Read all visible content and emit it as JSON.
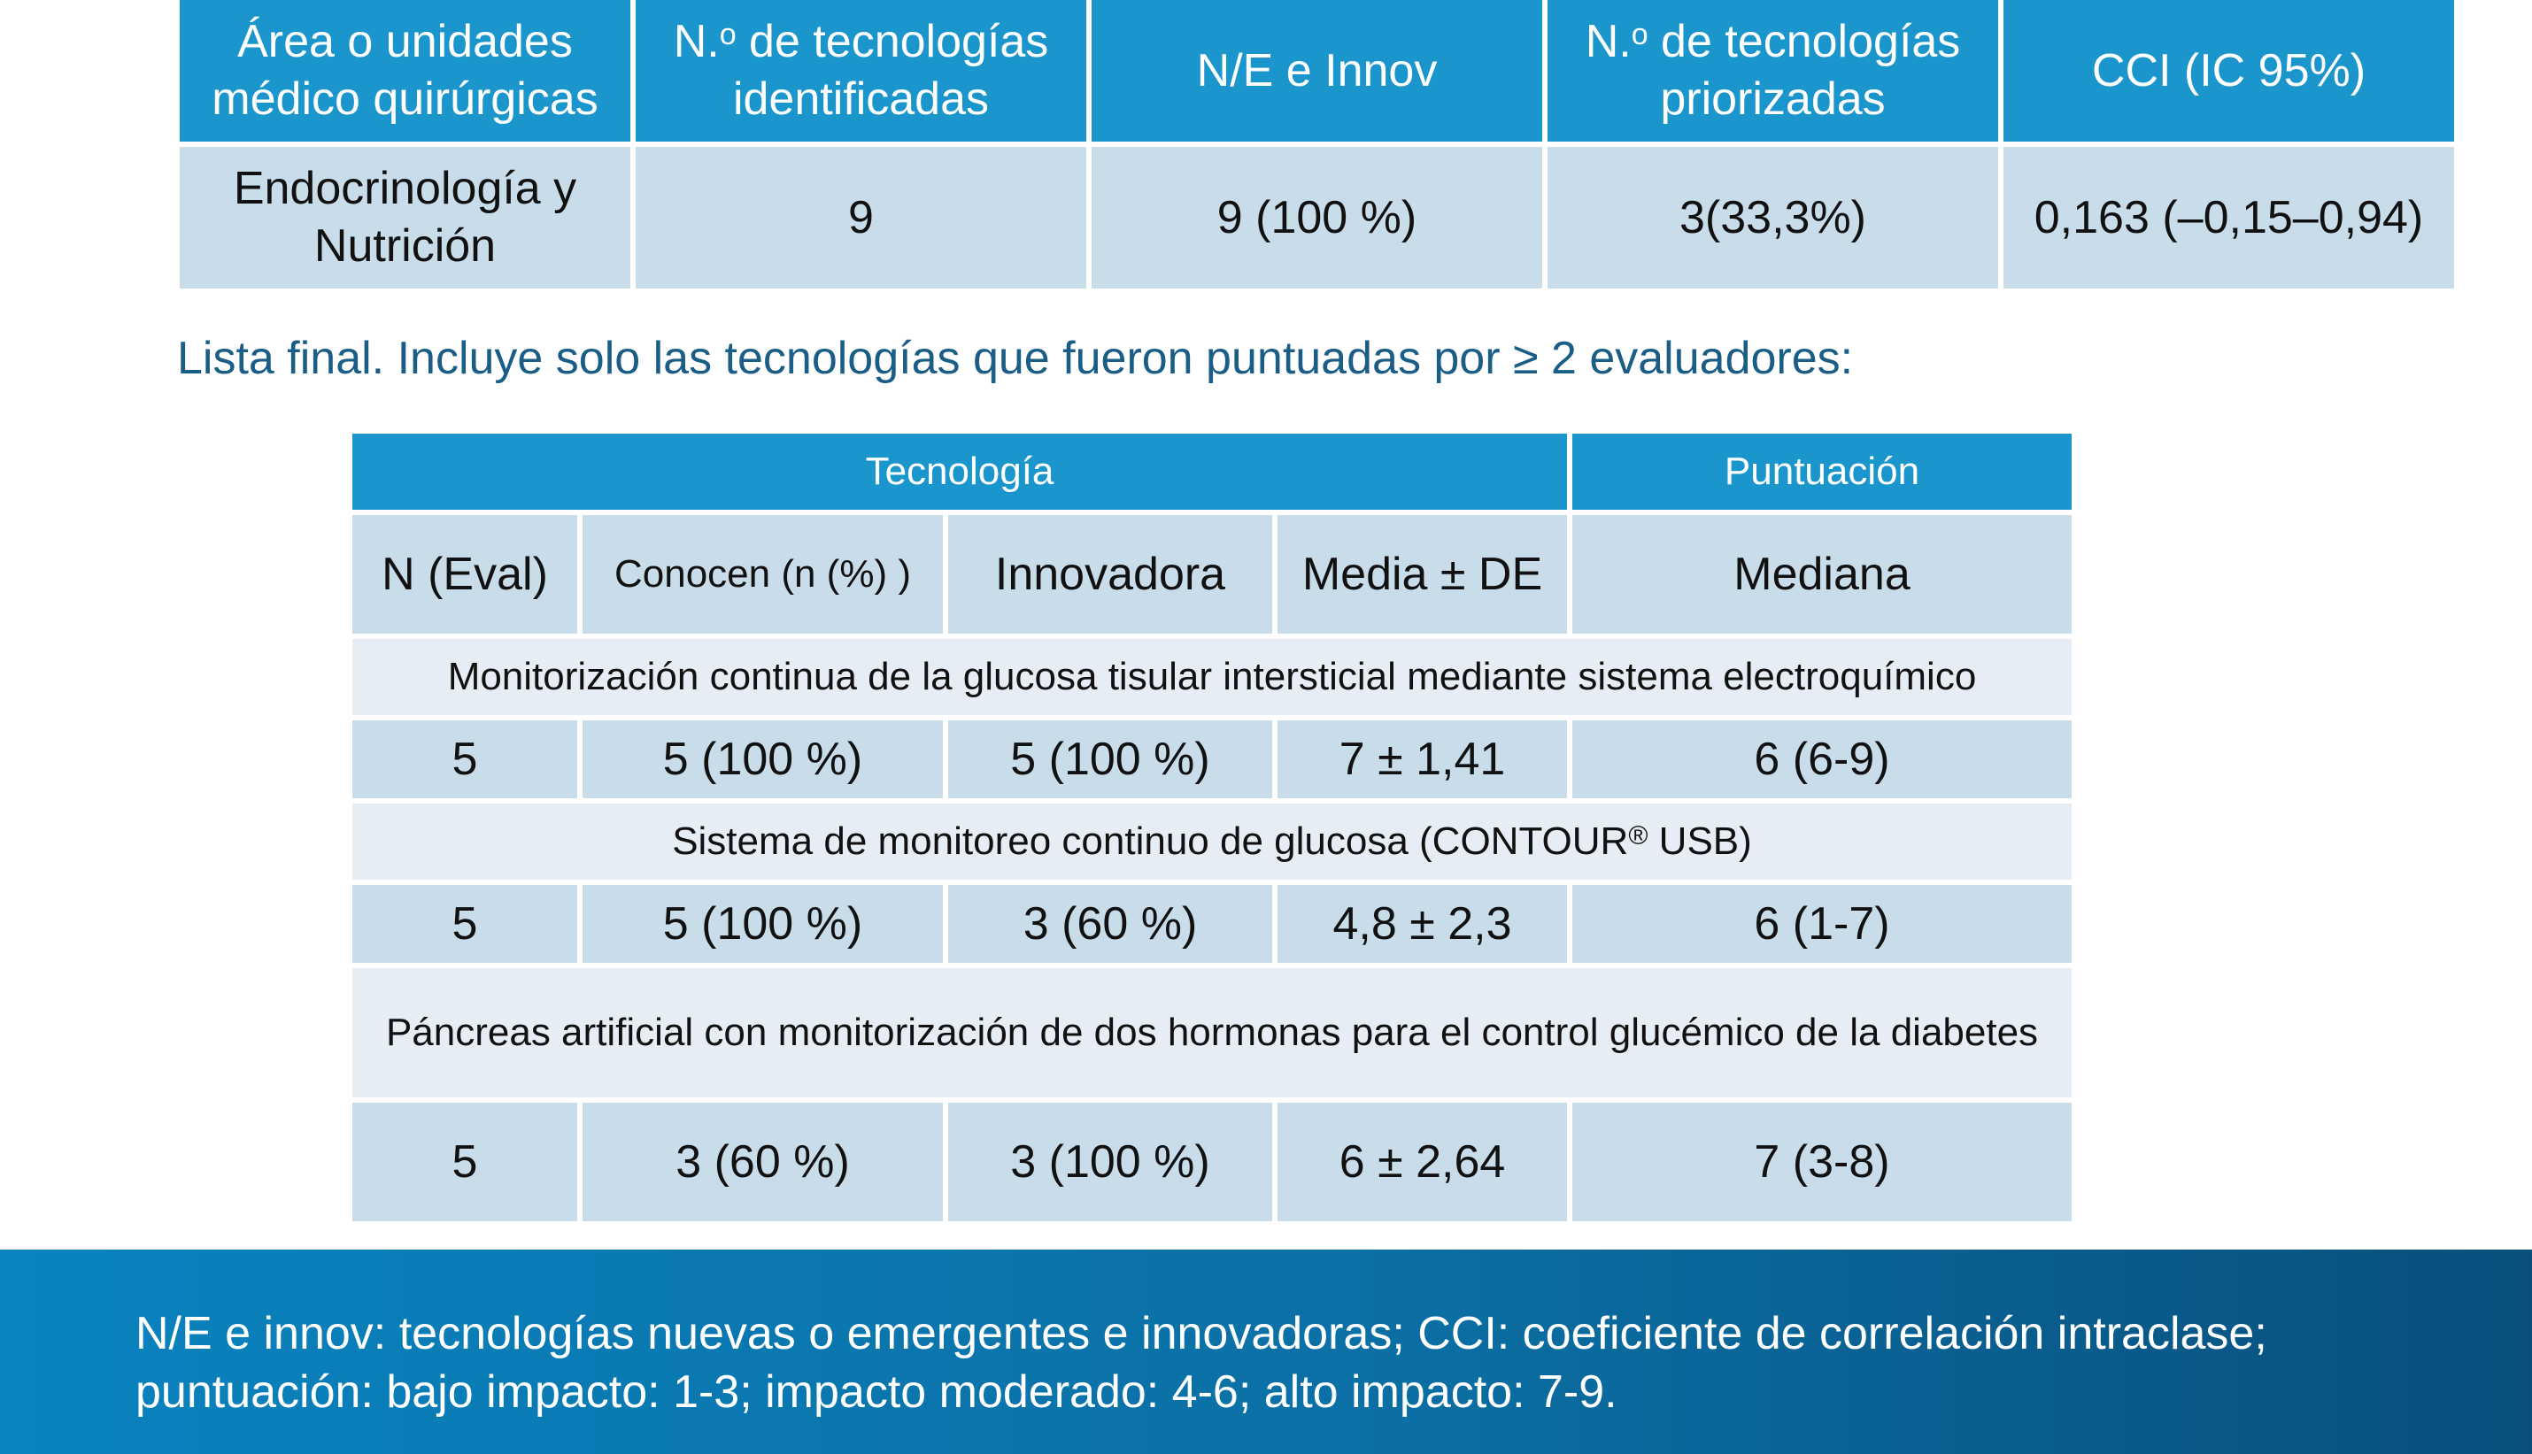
{
  "table1": {
    "headers": {
      "area": [
        "Área o unidades",
        "médico quirúrgicas"
      ],
      "identified": {
        "prefix": "N.",
        "sup": "o",
        "line1_rest": " de tecnologías",
        "line2": "identificadas"
      },
      "ne_innov": "N/E e Innov",
      "prioritized": {
        "prefix": "N.",
        "sup": "o",
        "line1_rest": " de tecnologías",
        "line2": "priorizadas"
      },
      "cci": "CCI (IC 95%)"
    },
    "row": {
      "area": [
        "Endocrinología y",
        "Nutrición"
      ],
      "identified": "9",
      "ne_innov": "9 (100 %)",
      "prioritized": "3(33,3%)",
      "cci": "0,163 (–0,15–0,94)"
    }
  },
  "caption": "Lista final. Incluye solo las tecnologías que fueron puntuadas por ≥ 2 evaluadores:",
  "table2": {
    "group_headers": {
      "tech": "Tecnología",
      "score": "Puntuación"
    },
    "sub_headers": {
      "n_eval": "N (Eval)",
      "know": "Conocen (n (%) )",
      "innovative": "Innovadora",
      "mean": "Media ± DE",
      "median": "Mediana"
    },
    "technologies": [
      {
        "name": "Monitorización continua de la glucosa tisular intersticial mediante sistema electroquímico",
        "n_eval": "5",
        "know": "5 (100 %)",
        "innovative": "5 (100 %)",
        "mean": "7 ± 1,41",
        "median": "6 (6-9)"
      },
      {
        "name_before": "Sistema de monitoreo continuo de glucosa (CONTOUR",
        "name_sup": "®",
        "name_after": " USB)",
        "n_eval": "5",
        "know": "5 (100 %)",
        "innovative": "3 (60 %)",
        "mean": "4,8 ± 2,3",
        "median": "6 (1-7)"
      },
      {
        "name": "Páncreas artificial con monitorización de dos hormonas para el control glucémico de la diabetes",
        "n_eval": "5",
        "know": "3 (60 %)",
        "innovative": "3 (100 %)",
        "mean": "6 ± 2,64",
        "median": "7 (3-8)"
      }
    ]
  },
  "footer": {
    "line1": "N/E e innov: tecnologías nuevas o emergentes e innovadoras; CCI: coeficiente de correlación intraclase;",
    "line2": "puntuación: bajo impacto: 1-3; impacto moderado: 4-6; alto impacto: 7-9."
  },
  "colors": {
    "header_blue": "#1a96cc",
    "cell_blue": "#c9dcea",
    "cell_light": "#e6edf5",
    "caption_text": "#1a5d86",
    "footer_start": "#0a83bf",
    "footer_end": "#084f7d"
  }
}
